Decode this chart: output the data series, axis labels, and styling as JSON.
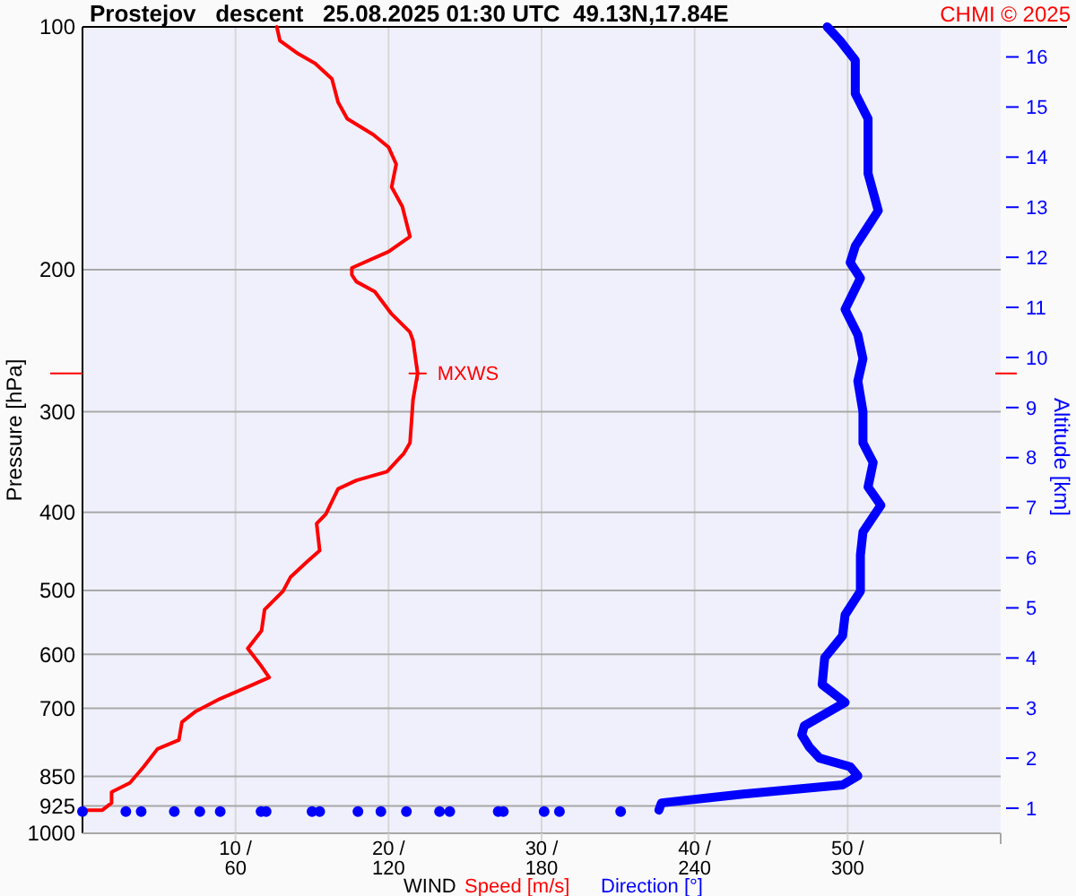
{
  "chart_data": {
    "type": "line",
    "orientation": "horizontal",
    "title": "Prostejov   descent   25.08.2025 01:30 UTC  49.13N,17.84E",
    "xlabel": "WIND",
    "ylabel": "Pressure [hPa]",
    "y2label": "Altitude [km]",
    "annotations": [
      "CHMI © 2025",
      {
        "text": "MXWS",
        "x": 21.9,
        "y": 269
      }
    ],
    "series": [
      {
        "name": "Speed [m/s]",
        "color": "#ff0000",
        "x": [
          100,
          104,
          108,
          111,
          116,
          124,
          130,
          136,
          141,
          148,
          158,
          167,
          182,
          190,
          199,
          203,
          207,
          213,
          227,
          239,
          245,
          269,
          290,
          328,
          338,
          356,
          365,
          374,
          402,
          413,
          446,
          460,
          481,
          501,
          528,
          561,
          590,
          621,
          641,
          657,
          681,
          706,
          728,
          766,
          786,
          827,
          866,
          889,
          917,
          936,
          936
        ],
        "values": [
          12.7,
          12.9,
          14.1,
          15.2,
          16.3,
          16.7,
          17.3,
          19.0,
          20.0,
          20.5,
          20.2,
          20.9,
          21.4,
          20.0,
          17.6,
          17.6,
          17.9,
          19.1,
          20.2,
          21.4,
          21.6,
          21.9,
          21.6,
          21.4,
          21.0,
          19.9,
          17.9,
          16.7,
          15.9,
          15.3,
          15.5,
          14.7,
          13.6,
          13.1,
          11.9,
          11.7,
          10.8,
          11.7,
          12.2,
          10.9,
          9.0,
          7.4,
          6.5,
          6.3,
          4.9,
          4.0,
          3.1,
          1.9,
          1.9,
          1.3,
          0
        ]
      },
      {
        "name": "Direction [°]",
        "color": "#0000ff",
        "axis": "x2",
        "x": [
          100,
          104,
          110,
          121,
          130,
          152,
          169,
          187,
          196,
          205,
          224,
          241,
          258,
          275,
          300,
          328,
          347,
          372,
          392,
          423,
          452,
          501,
          536,
          569,
          606,
          654,
          688,
          736,
          755,
          782,
          807,
          827,
          849,
          871,
          894,
          917,
          936
        ],
        "values": [
          292,
          297,
          303,
          303,
          308,
          308,
          312,
          303,
          301,
          305,
          299,
          304,
          306,
          304,
          306,
          306,
          310,
          308,
          313,
          306,
          305,
          305,
          299,
          298,
          291,
          290,
          299,
          283,
          282,
          285,
          289,
          301,
          304,
          298,
          259,
          227,
          226
        ]
      },
      {
        "type": "scatter",
        "color": "#0000ff",
        "axis": "x2",
        "x": [
          940,
          940,
          940,
          940,
          940,
          940,
          940,
          940,
          940,
          940,
          940,
          940,
          940,
          940,
          940,
          940,
          940,
          940,
          940,
          940
        ],
        "values": [
          0,
          17,
          23,
          36,
          46,
          54,
          70,
          72,
          90,
          93,
          108,
          117,
          127,
          140,
          144,
          163,
          165,
          181,
          187,
          211
        ]
      }
    ],
    "xlim": [
      0,
      60
    ],
    "xticks": [
      {
        "value": 10,
        "label": "10 /"
      },
      {
        "value": 20,
        "label": "20 /"
      },
      {
        "value": 30,
        "label": "30 /"
      },
      {
        "value": 40,
        "label": "40 /"
      },
      {
        "value": 50,
        "label": "50 /"
      }
    ],
    "x2lim": [
      0,
      360
    ],
    "x2ticks": [
      60,
      120,
      180,
      240,
      300
    ],
    "ylim": [
      1000,
      100
    ],
    "yticks": [
      100,
      200,
      300,
      400,
      500,
      600,
      700,
      850,
      925,
      1000
    ],
    "log": "y",
    "y2lim": [
      0.5,
      16.6
    ],
    "y2ticks": [
      1,
      2,
      3,
      4,
      5,
      6,
      7,
      8,
      9,
      10,
      11,
      12,
      13,
      14,
      15,
      16
    ],
    "grid": true,
    "legend": "bottom"
  }
}
